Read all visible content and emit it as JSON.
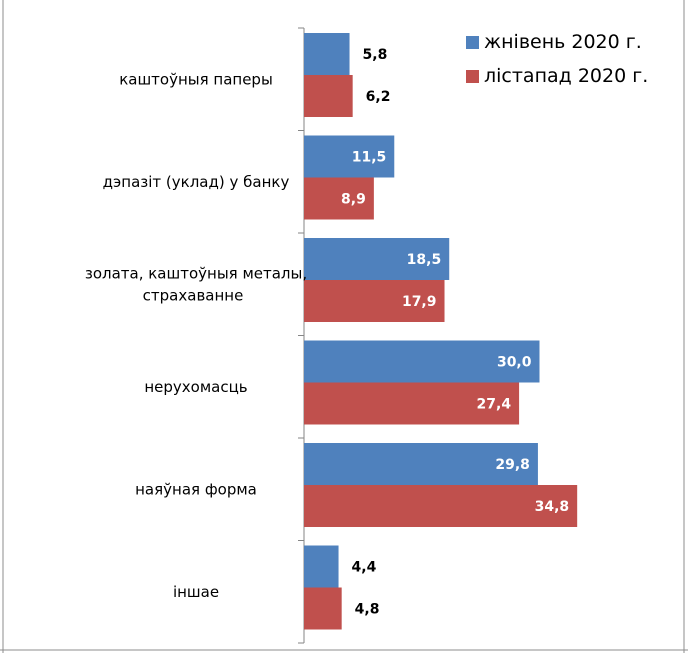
{
  "chart_data": {
    "type": "bar",
    "orientation": "horizontal",
    "title": "",
    "xlabel": "",
    "ylabel": "",
    "xlim": [
      0,
      40
    ],
    "grid": false,
    "legend_position": "top-right",
    "categories": [
      [
        "каштоўныя паперы"
      ],
      [
        "дэпазіт (уклад) у банку"
      ],
      [
        "золата, каштоўныя металы,",
        "страхаванне"
      ],
      [
        "нерухомасць"
      ],
      [
        "наяўная форма"
      ],
      [
        "іншае"
      ]
    ],
    "series": [
      {
        "name": "жнівень 2020 г.",
        "color": "#4f81bd",
        "values": [
          5.8,
          11.5,
          18.5,
          30.0,
          29.8,
          4.4
        ],
        "labels": [
          "5,8",
          "11,5",
          "18,5",
          "30,0",
          "29,8",
          "4,4"
        ]
      },
      {
        "name": "лістапад 2020 г.",
        "color": "#c0504d",
        "values": [
          6.2,
          8.9,
          17.9,
          27.4,
          34.8,
          4.8
        ],
        "labels": [
          "6,2",
          "8,9",
          "17,9",
          "27,4",
          "34,8",
          "4,8"
        ]
      }
    ]
  }
}
